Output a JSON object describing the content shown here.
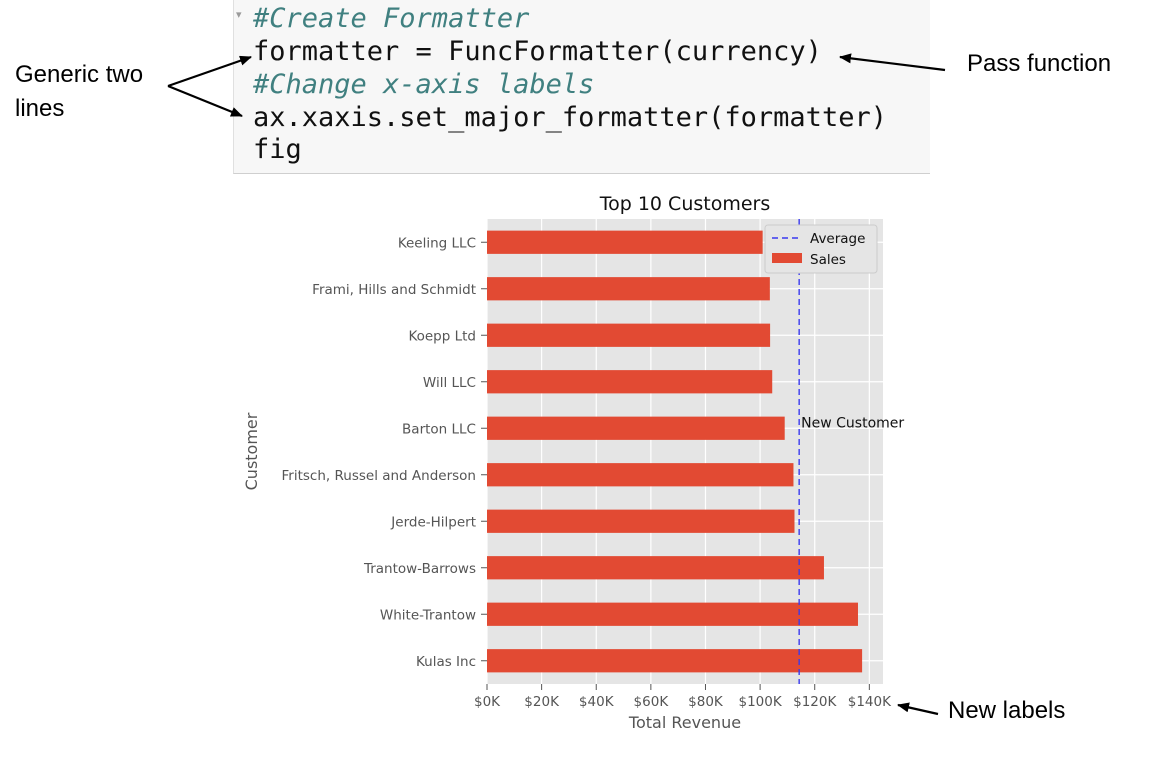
{
  "code_cell": {
    "lines": [
      {
        "text": "#Create Formatter",
        "kind": "comment"
      },
      {
        "text": "formatter = FuncFormatter(currency)",
        "kind": "code"
      },
      {
        "text": "#Change x-axis labels",
        "kind": "comment"
      },
      {
        "text": "ax.xaxis.set_major_formatter(formatter)",
        "kind": "code"
      },
      {
        "text": "fig",
        "kind": "code"
      }
    ]
  },
  "annotations": {
    "generic_line1": "Generic two",
    "generic_line2": "lines",
    "pass_function": "Pass function",
    "new_labels": "New labels"
  },
  "chart_data": {
    "type": "bar",
    "orientation": "horizontal",
    "title": "Top 10 Customers",
    "xlabel": "Total Revenue",
    "ylabel": "Customer",
    "categories": [
      "Keeling LLC",
      "Frami, Hills and Schmidt",
      "Koepp Ltd",
      "Will LLC",
      "Barton LLC",
      "Fritsch, Russel and Anderson",
      "Jerde-Hilpert",
      "Trantow-Barrows",
      "White-Trantow",
      "Kulas Inc"
    ],
    "series": [
      {
        "name": "Sales",
        "values": [
          100934,
          103569,
          103661,
          104438,
          109006,
          112214,
          112592,
          123381,
          135841,
          137352
        ],
        "color": "#e24a33"
      }
    ],
    "average": {
      "name": "Average",
      "value": 114300,
      "color": "#3a3af0"
    },
    "annotation_text": "New Customer",
    "xlim": [
      0,
      145000
    ],
    "xticks": [
      0,
      20000,
      40000,
      60000,
      80000,
      100000,
      120000,
      140000
    ],
    "xtick_labels": [
      "$0K",
      "$20K",
      "$40K",
      "$60K",
      "$80K",
      "$100K",
      "$120K",
      "$140K"
    ],
    "grid": true,
    "legend_position": "upper-right",
    "background_color": "#e5e5e5"
  }
}
